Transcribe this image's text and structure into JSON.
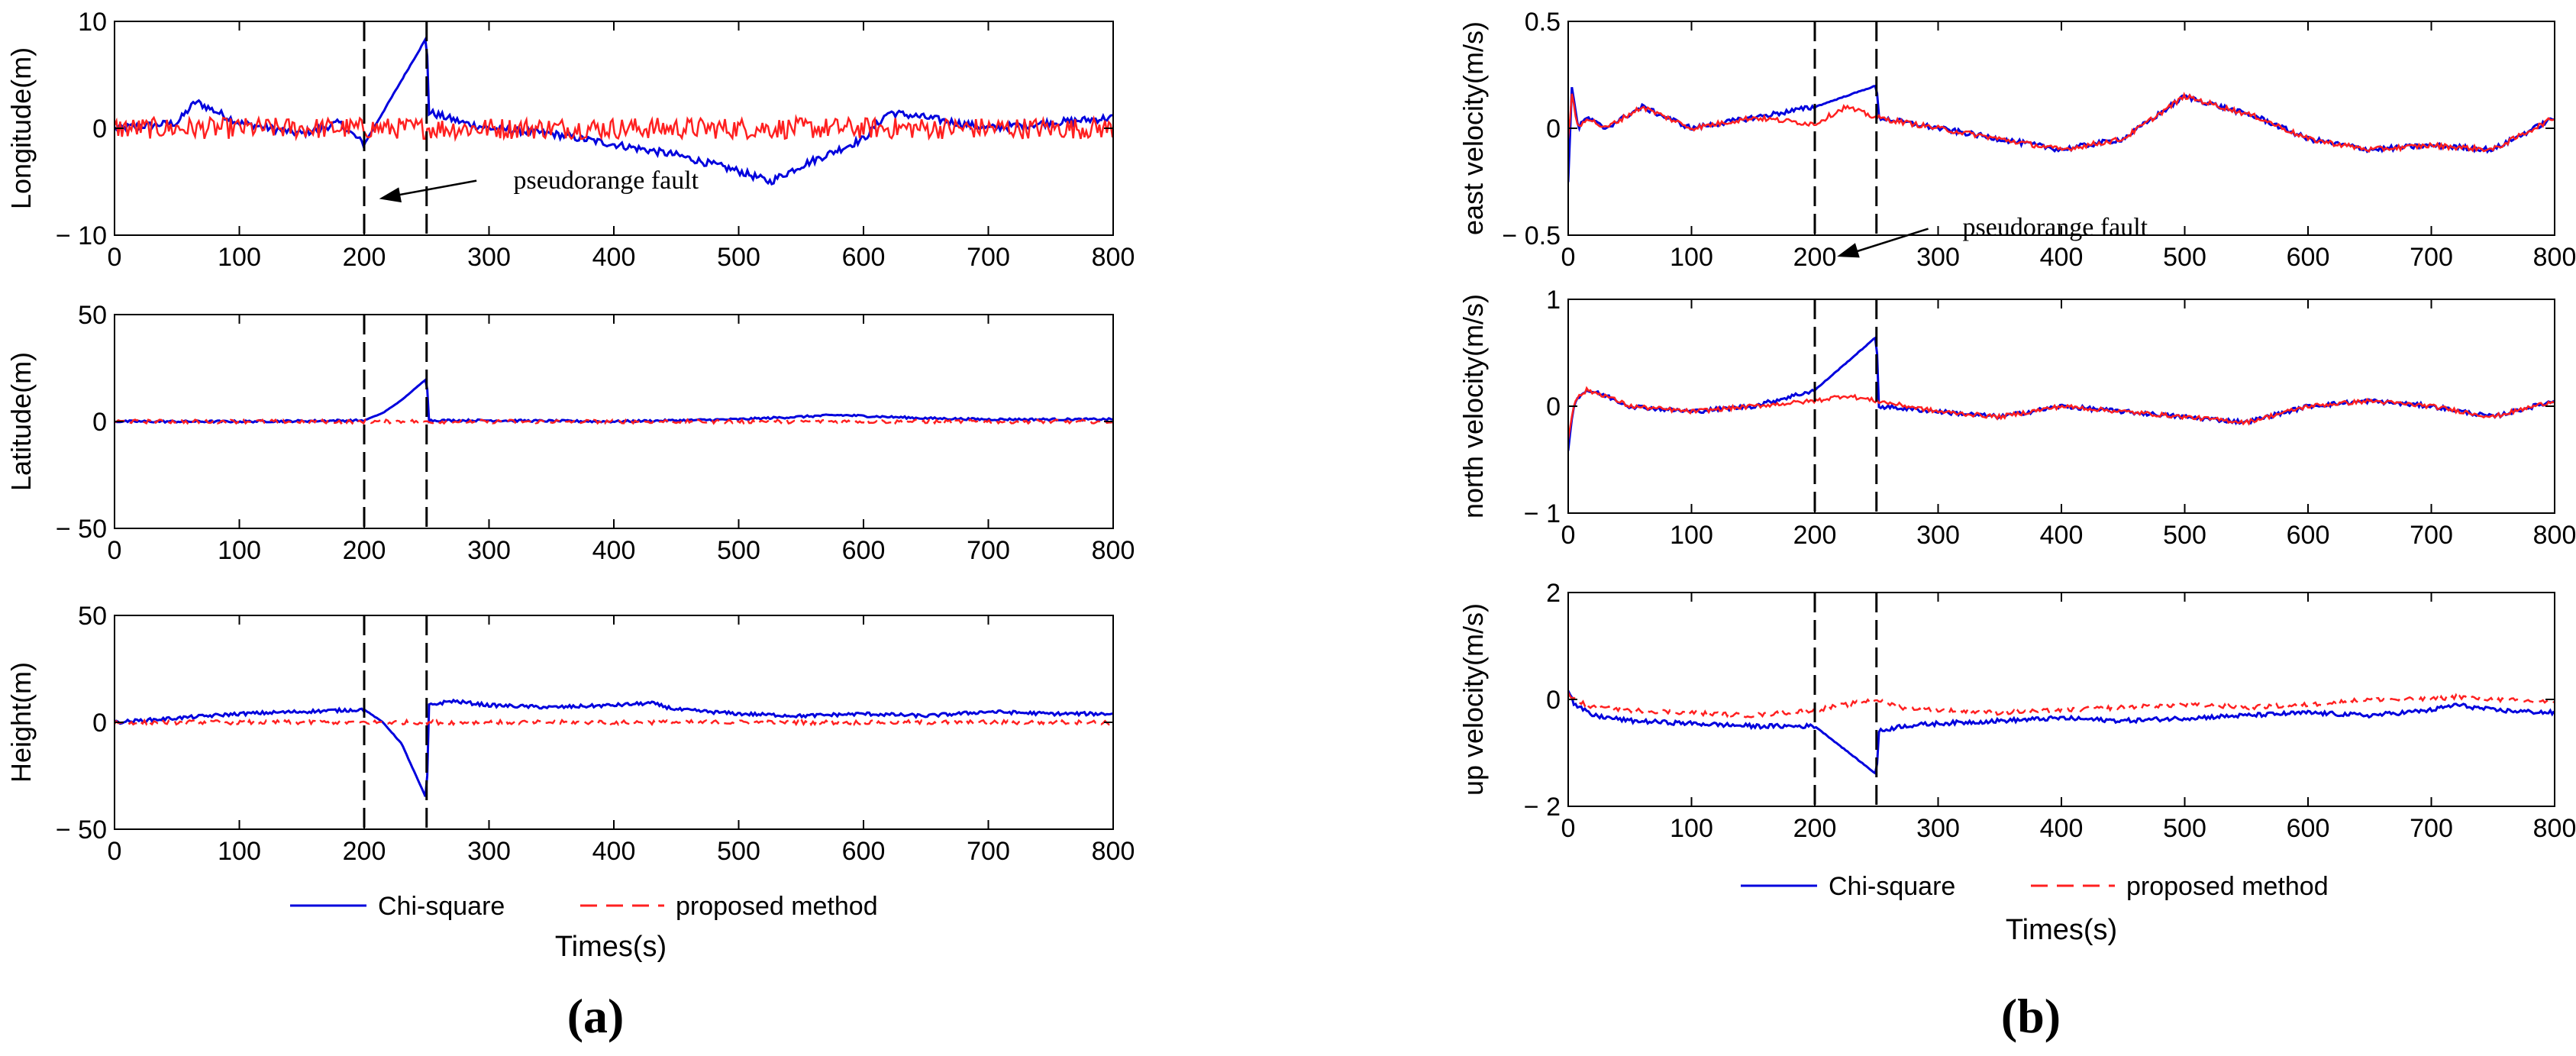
{
  "figure": {
    "panel_a_label": "(a)",
    "panel_b_label": "(b)",
    "series_names": [
      "Chi-square",
      "proposed method"
    ],
    "series_colors": [
      "#0000dd",
      "#ff2020"
    ],
    "fault_lines_x": [
      200,
      250
    ],
    "xlabel": "Times(s)",
    "annotation": "pseudorange fault"
  },
  "chart_data": [
    {
      "id": "a1",
      "type": "line",
      "ylabel": "Longitude(m)",
      "xlim": [
        0,
        800
      ],
      "ylim": [
        -10,
        10
      ],
      "xticks": [
        0,
        100,
        200,
        300,
        400,
        500,
        600,
        700,
        800
      ],
      "yticks": [
        -10,
        0,
        10
      ],
      "ytick_labels": [
        "− 10",
        "0",
        "10"
      ],
      "series": [
        {
          "name": "Chi-square",
          "x": [
            0,
            50,
            65,
            100,
            150,
            180,
            200,
            215,
            230,
            250,
            252,
            280,
            300,
            350,
            400,
            450,
            500,
            525,
            550,
            600,
            620,
            650,
            700,
            750,
            800
          ],
          "y": [
            0,
            0.5,
            2.5,
            0.5,
            -0.5,
            0.5,
            -1.5,
            1.5,
            4.5,
            8.5,
            1.5,
            0.5,
            0,
            -0.5,
            -1.5,
            -2.5,
            -4,
            -5,
            -3.5,
            -1,
            1.5,
            1,
            0,
            0.5,
            1
          ]
        },
        {
          "name": "proposed method",
          "x": [
            0,
            100,
            200,
            250,
            300,
            400,
            500,
            600,
            700,
            800
          ],
          "y": [
            0,
            0,
            0,
            0,
            0,
            0,
            0,
            0,
            0,
            0
          ]
        }
      ],
      "annotation_text": "pseudorange fault"
    },
    {
      "id": "a2",
      "type": "line",
      "ylabel": "Latitude(m)",
      "xlim": [
        0,
        800
      ],
      "ylim": [
        -50,
        50
      ],
      "xticks": [
        0,
        100,
        200,
        300,
        400,
        500,
        600,
        700,
        800
      ],
      "yticks": [
        -50,
        0,
        50
      ],
      "ytick_labels": [
        "− 50",
        "0",
        "50"
      ],
      "series": [
        {
          "name": "Chi-square",
          "x": [
            0,
            100,
            200,
            215,
            230,
            250,
            252,
            300,
            400,
            500,
            580,
            650,
            700,
            800
          ],
          "y": [
            0,
            0,
            0.5,
            4,
            10,
            20,
            0.5,
            0.5,
            0,
            1,
            3,
            1.5,
            1,
            1
          ]
        },
        {
          "name": "proposed method",
          "x": [
            0,
            100,
            200,
            250,
            300,
            400,
            500,
            600,
            700,
            800
          ],
          "y": [
            0,
            0,
            0,
            0,
            0,
            0,
            0,
            0,
            0,
            0
          ]
        }
      ]
    },
    {
      "id": "a3",
      "type": "line",
      "ylabel": "Height(m)",
      "xlim": [
        0,
        800
      ],
      "ylim": [
        -50,
        50
      ],
      "xticks": [
        0,
        100,
        200,
        300,
        400,
        500,
        600,
        700,
        800
      ],
      "yticks": [
        -50,
        0,
        50
      ],
      "ytick_labels": [
        "− 50",
        "0",
        "50"
      ],
      "series": [
        {
          "name": "Chi-square",
          "x": [
            0,
            50,
            100,
            150,
            200,
            215,
            230,
            250,
            252,
            270,
            300,
            350,
            400,
            430,
            450,
            500,
            550,
            600,
            650,
            700,
            750,
            800
          ],
          "y": [
            0,
            2,
            4,
            5,
            6,
            0,
            -10,
            -36,
            8,
            10,
            8,
            7,
            8,
            9,
            6,
            4,
            3,
            4,
            3,
            5,
            4,
            4
          ]
        },
        {
          "name": "proposed method",
          "x": [
            0,
            100,
            200,
            250,
            300,
            400,
            500,
            600,
            700,
            800
          ],
          "y": [
            0,
            0,
            0,
            0,
            0,
            0,
            0,
            0,
            0,
            0
          ]
        }
      ]
    },
    {
      "id": "b1",
      "type": "line",
      "ylabel": "east velocity(m/s)",
      "xlim": [
        0,
        800
      ],
      "ylim": [
        -0.5,
        0.5
      ],
      "xticks": [
        0,
        100,
        200,
        300,
        400,
        500,
        600,
        700,
        800
      ],
      "yticks": [
        -0.5,
        0,
        0.5
      ],
      "ytick_labels": [
        "− 0.5",
        "0",
        "0.5"
      ],
      "series": [
        {
          "name": "Chi-square",
          "x": [
            0,
            3,
            8,
            15,
            30,
            60,
            100,
            150,
            200,
            250,
            252,
            300,
            350,
            400,
            450,
            500,
            530,
            560,
            600,
            650,
            700,
            750,
            800
          ],
          "y": [
            -0.25,
            0.2,
            0,
            0.05,
            0,
            0.1,
            0,
            0.05,
            0.1,
            0.2,
            0.05,
            0,
            -0.05,
            -0.1,
            -0.05,
            0.15,
            0.1,
            0.05,
            -0.05,
            -0.1,
            -0.08,
            -0.1,
            0.05
          ]
        },
        {
          "name": "proposed method",
          "x": [
            0,
            3,
            8,
            15,
            30,
            60,
            100,
            150,
            200,
            225,
            250,
            300,
            350,
            400,
            450,
            500,
            530,
            560,
            600,
            650,
            700,
            750,
            800
          ],
          "y": [
            -0.05,
            0.15,
            0,
            0.05,
            0,
            0.1,
            0,
            0.05,
            0.02,
            0.1,
            0.05,
            0,
            -0.05,
            -0.1,
            -0.05,
            0.15,
            0.1,
            0.05,
            -0.05,
            -0.1,
            -0.08,
            -0.1,
            0.05
          ]
        }
      ],
      "annotation_text": "pseudorange fault"
    },
    {
      "id": "b2",
      "type": "line",
      "ylabel": "north velocity(m/s)",
      "xlim": [
        0,
        800
      ],
      "ylim": [
        -1,
        1
      ],
      "xticks": [
        0,
        100,
        200,
        300,
        400,
        500,
        600,
        700,
        800
      ],
      "yticks": [
        -1,
        0,
        1
      ],
      "ytick_labels": [
        "− 1",
        "0",
        "1"
      ],
      "series": [
        {
          "name": "Chi-square",
          "x": [
            0,
            5,
            15,
            30,
            50,
            100,
            150,
            200,
            250,
            252,
            300,
            350,
            400,
            450,
            500,
            550,
            600,
            650,
            700,
            750,
            800
          ],
          "y": [
            -0.4,
            0.05,
            0.15,
            0.1,
            0,
            -0.05,
            0,
            0.15,
            0.65,
            0,
            -0.05,
            -0.1,
            0,
            -0.05,
            -0.1,
            -0.15,
            0,
            0.05,
            0,
            -0.1,
            0.05
          ]
        },
        {
          "name": "proposed method",
          "x": [
            0,
            5,
            15,
            30,
            50,
            100,
            150,
            200,
            225,
            250,
            300,
            350,
            400,
            450,
            500,
            550,
            600,
            650,
            700,
            750,
            800
          ],
          "y": [
            -0.3,
            0.05,
            0.15,
            0.1,
            0,
            -0.05,
            0,
            0.05,
            0.1,
            0.05,
            -0.05,
            -0.1,
            0,
            -0.05,
            -0.1,
            -0.15,
            0,
            0.05,
            0,
            -0.1,
            0.05
          ]
        }
      ]
    },
    {
      "id": "b3",
      "type": "line",
      "ylabel": "up velocity(m/s)",
      "xlim": [
        0,
        800
      ],
      "ylim": [
        -2,
        2
      ],
      "xticks": [
        0,
        100,
        200,
        300,
        400,
        500,
        600,
        700,
        800
      ],
      "yticks": [
        -2,
        0,
        2
      ],
      "ytick_labels": [
        "− 2",
        "0",
        "2"
      ],
      "series": [
        {
          "name": "Chi-square",
          "x": [
            0,
            5,
            20,
            50,
            100,
            150,
            200,
            250,
            252,
            270,
            300,
            350,
            400,
            450,
            500,
            550,
            600,
            650,
            700,
            720,
            750,
            800
          ],
          "y": [
            0.2,
            -0.1,
            -0.3,
            -0.4,
            -0.45,
            -0.5,
            -0.5,
            -1.4,
            -0.6,
            -0.5,
            -0.45,
            -0.4,
            -0.35,
            -0.4,
            -0.35,
            -0.3,
            -0.25,
            -0.3,
            -0.2,
            -0.1,
            -0.2,
            -0.25
          ]
        },
        {
          "name": "proposed method",
          "x": [
            0,
            5,
            20,
            50,
            100,
            150,
            200,
            250,
            270,
            300,
            350,
            400,
            450,
            500,
            550,
            600,
            650,
            700,
            720,
            750,
            800
          ],
          "y": [
            0.1,
            0,
            -0.15,
            -0.2,
            -0.25,
            -0.3,
            -0.2,
            0,
            -0.15,
            -0.2,
            -0.25,
            -0.2,
            -0.15,
            -0.1,
            -0.15,
            -0.1,
            0,
            0,
            0.05,
            0,
            -0.05
          ]
        }
      ]
    }
  ]
}
